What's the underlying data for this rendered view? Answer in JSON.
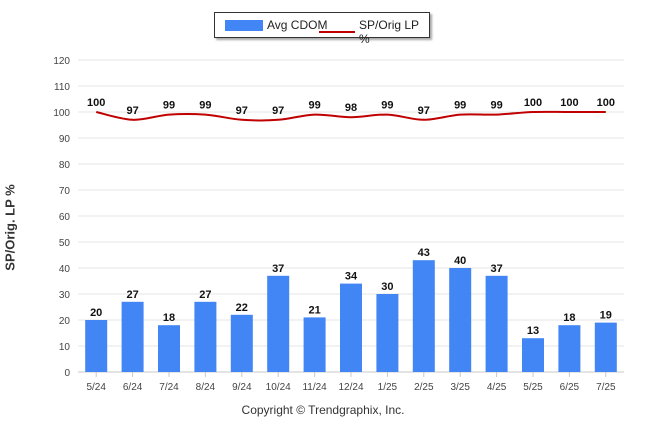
{
  "legend": {
    "bar_label": "Avg CDOM",
    "line_label": "SP/Orig LP %"
  },
  "copyright": "Copyright © Trendgraphix, Inc.",
  "colors": {
    "bar": "#4285f4",
    "line": "#c00000",
    "grid": "#e6e6e6"
  },
  "chart_data": {
    "type": "bar",
    "title": "",
    "xlabel": "",
    "ylabel": "SP/Orig. LP %",
    "ylim": [
      0,
      120
    ],
    "yticks": [
      0,
      10,
      20,
      30,
      40,
      50,
      60,
      70,
      80,
      90,
      100,
      110,
      120
    ],
    "grid": true,
    "legend_position": "top-center",
    "categories": [
      "5/24",
      "6/24",
      "7/24",
      "8/24",
      "9/24",
      "10/24",
      "11/24",
      "12/24",
      "1/25",
      "2/25",
      "3/25",
      "4/25",
      "5/25",
      "6/25",
      "7/25"
    ],
    "series": [
      {
        "name": "Avg CDOM",
        "type": "bar",
        "values": [
          20,
          27,
          18,
          27,
          22,
          37,
          21,
          34,
          30,
          43,
          40,
          37,
          13,
          18,
          19
        ]
      },
      {
        "name": "SP/Orig LP %",
        "type": "line",
        "values": [
          100,
          97,
          99,
          99,
          97,
          97,
          99,
          98,
          99,
          97,
          99,
          99,
          100,
          100,
          100
        ]
      }
    ]
  }
}
